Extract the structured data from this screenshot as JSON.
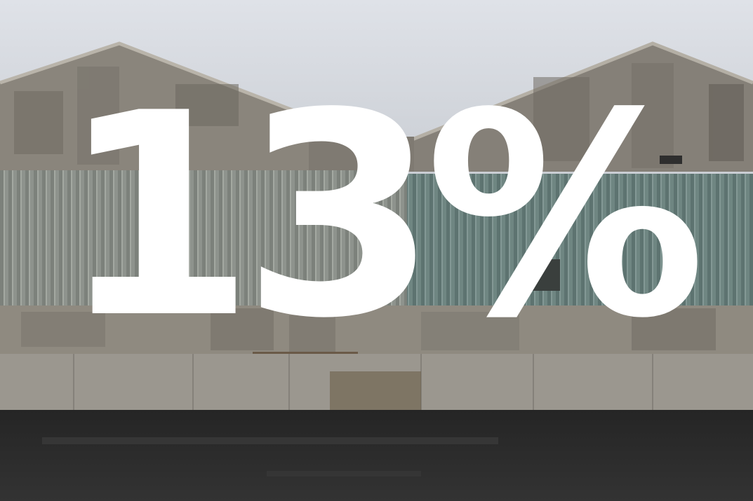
{
  "overlay": {
    "text": "13%",
    "color": "#ffffff"
  },
  "photo": {
    "subject": "warehouse-facade",
    "colors": {
      "sky": "#d3d7dd",
      "concrete": "#8a857c",
      "corrugated_grey": "#8e938d",
      "corrugated_teal": "#6f8682",
      "plinth": "#9b978f",
      "asphalt": "#2b2b2b"
    }
  }
}
